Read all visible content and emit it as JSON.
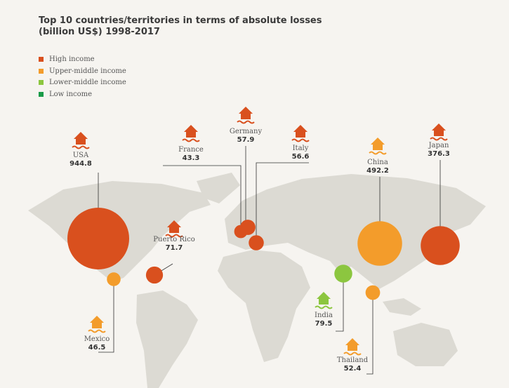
{
  "title": {
    "line1": "Top 10 countries/territories in terms of absolute losses",
    "line2": "(billion US$) 1998-2017"
  },
  "legend": [
    {
      "label": "High income",
      "color": "#d9501e"
    },
    {
      "label": "Upper-middle income",
      "color": "#f39c2b"
    },
    {
      "label": "Lower-middle income",
      "color": "#8cc63f"
    },
    {
      "label": "Low income",
      "color": "#1a9b48"
    }
  ],
  "countries": [
    {
      "name": "USA",
      "value": 944.8,
      "income": "High income"
    },
    {
      "name": "Mexico",
      "value": 46.5,
      "income": "Upper-middle income"
    },
    {
      "name": "Puerto Rico",
      "value": 71.7,
      "income": "High income"
    },
    {
      "name": "France",
      "value": 43.3,
      "income": "High income"
    },
    {
      "name": "Germany",
      "value": 57.9,
      "income": "High income"
    },
    {
      "name": "Italy",
      "value": 56.6,
      "income": "High income"
    },
    {
      "name": "China",
      "value": 492.2,
      "income": "Upper-middle income"
    },
    {
      "name": "Japan",
      "value": 376.3,
      "income": "High income"
    },
    {
      "name": "India",
      "value": 79.5,
      "income": "Lower-middle income"
    },
    {
      "name": "Thailand",
      "value": 52.4,
      "income": "Upper-middle income"
    }
  ]
}
